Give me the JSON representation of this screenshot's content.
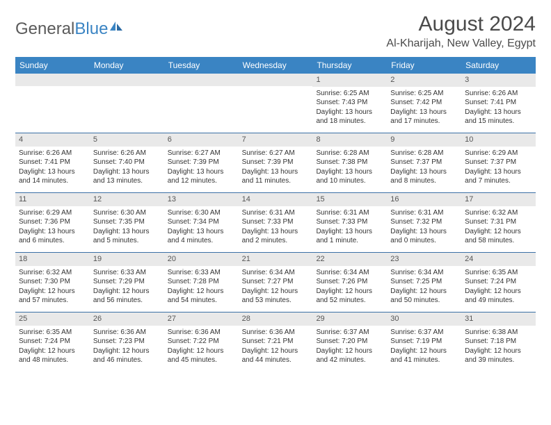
{
  "logo": {
    "text_dark": "General",
    "text_blue": "Blue"
  },
  "title": "August 2024",
  "location": "Al-Kharijah, New Valley, Egypt",
  "colors": {
    "header_bg": "#3a84c3",
    "header_text": "#ffffff",
    "daynum_bg": "#e9e9e9",
    "week_border": "#3a6fa5",
    "text": "#333333"
  },
  "day_names": [
    "Sunday",
    "Monday",
    "Tuesday",
    "Wednesday",
    "Thursday",
    "Friday",
    "Saturday"
  ],
  "weeks": [
    [
      {
        "n": "",
        "sr": "",
        "ss": "",
        "dl": ""
      },
      {
        "n": "",
        "sr": "",
        "ss": "",
        "dl": ""
      },
      {
        "n": "",
        "sr": "",
        "ss": "",
        "dl": ""
      },
      {
        "n": "",
        "sr": "",
        "ss": "",
        "dl": ""
      },
      {
        "n": "1",
        "sr": "Sunrise: 6:25 AM",
        "ss": "Sunset: 7:43 PM",
        "dl": "Daylight: 13 hours and 18 minutes."
      },
      {
        "n": "2",
        "sr": "Sunrise: 6:25 AM",
        "ss": "Sunset: 7:42 PM",
        "dl": "Daylight: 13 hours and 17 minutes."
      },
      {
        "n": "3",
        "sr": "Sunrise: 6:26 AM",
        "ss": "Sunset: 7:41 PM",
        "dl": "Daylight: 13 hours and 15 minutes."
      }
    ],
    [
      {
        "n": "4",
        "sr": "Sunrise: 6:26 AM",
        "ss": "Sunset: 7:41 PM",
        "dl": "Daylight: 13 hours and 14 minutes."
      },
      {
        "n": "5",
        "sr": "Sunrise: 6:26 AM",
        "ss": "Sunset: 7:40 PM",
        "dl": "Daylight: 13 hours and 13 minutes."
      },
      {
        "n": "6",
        "sr": "Sunrise: 6:27 AM",
        "ss": "Sunset: 7:39 PM",
        "dl": "Daylight: 13 hours and 12 minutes."
      },
      {
        "n": "7",
        "sr": "Sunrise: 6:27 AM",
        "ss": "Sunset: 7:39 PM",
        "dl": "Daylight: 13 hours and 11 minutes."
      },
      {
        "n": "8",
        "sr": "Sunrise: 6:28 AM",
        "ss": "Sunset: 7:38 PM",
        "dl": "Daylight: 13 hours and 10 minutes."
      },
      {
        "n": "9",
        "sr": "Sunrise: 6:28 AM",
        "ss": "Sunset: 7:37 PM",
        "dl": "Daylight: 13 hours and 8 minutes."
      },
      {
        "n": "10",
        "sr": "Sunrise: 6:29 AM",
        "ss": "Sunset: 7:37 PM",
        "dl": "Daylight: 13 hours and 7 minutes."
      }
    ],
    [
      {
        "n": "11",
        "sr": "Sunrise: 6:29 AM",
        "ss": "Sunset: 7:36 PM",
        "dl": "Daylight: 13 hours and 6 minutes."
      },
      {
        "n": "12",
        "sr": "Sunrise: 6:30 AM",
        "ss": "Sunset: 7:35 PM",
        "dl": "Daylight: 13 hours and 5 minutes."
      },
      {
        "n": "13",
        "sr": "Sunrise: 6:30 AM",
        "ss": "Sunset: 7:34 PM",
        "dl": "Daylight: 13 hours and 4 minutes."
      },
      {
        "n": "14",
        "sr": "Sunrise: 6:31 AM",
        "ss": "Sunset: 7:33 PM",
        "dl": "Daylight: 13 hours and 2 minutes."
      },
      {
        "n": "15",
        "sr": "Sunrise: 6:31 AM",
        "ss": "Sunset: 7:33 PM",
        "dl": "Daylight: 13 hours and 1 minute."
      },
      {
        "n": "16",
        "sr": "Sunrise: 6:31 AM",
        "ss": "Sunset: 7:32 PM",
        "dl": "Daylight: 13 hours and 0 minutes."
      },
      {
        "n": "17",
        "sr": "Sunrise: 6:32 AM",
        "ss": "Sunset: 7:31 PM",
        "dl": "Daylight: 12 hours and 58 minutes."
      }
    ],
    [
      {
        "n": "18",
        "sr": "Sunrise: 6:32 AM",
        "ss": "Sunset: 7:30 PM",
        "dl": "Daylight: 12 hours and 57 minutes."
      },
      {
        "n": "19",
        "sr": "Sunrise: 6:33 AM",
        "ss": "Sunset: 7:29 PM",
        "dl": "Daylight: 12 hours and 56 minutes."
      },
      {
        "n": "20",
        "sr": "Sunrise: 6:33 AM",
        "ss": "Sunset: 7:28 PM",
        "dl": "Daylight: 12 hours and 54 minutes."
      },
      {
        "n": "21",
        "sr": "Sunrise: 6:34 AM",
        "ss": "Sunset: 7:27 PM",
        "dl": "Daylight: 12 hours and 53 minutes."
      },
      {
        "n": "22",
        "sr": "Sunrise: 6:34 AM",
        "ss": "Sunset: 7:26 PM",
        "dl": "Daylight: 12 hours and 52 minutes."
      },
      {
        "n": "23",
        "sr": "Sunrise: 6:34 AM",
        "ss": "Sunset: 7:25 PM",
        "dl": "Daylight: 12 hours and 50 minutes."
      },
      {
        "n": "24",
        "sr": "Sunrise: 6:35 AM",
        "ss": "Sunset: 7:24 PM",
        "dl": "Daylight: 12 hours and 49 minutes."
      }
    ],
    [
      {
        "n": "25",
        "sr": "Sunrise: 6:35 AM",
        "ss": "Sunset: 7:24 PM",
        "dl": "Daylight: 12 hours and 48 minutes."
      },
      {
        "n": "26",
        "sr": "Sunrise: 6:36 AM",
        "ss": "Sunset: 7:23 PM",
        "dl": "Daylight: 12 hours and 46 minutes."
      },
      {
        "n": "27",
        "sr": "Sunrise: 6:36 AM",
        "ss": "Sunset: 7:22 PM",
        "dl": "Daylight: 12 hours and 45 minutes."
      },
      {
        "n": "28",
        "sr": "Sunrise: 6:36 AM",
        "ss": "Sunset: 7:21 PM",
        "dl": "Daylight: 12 hours and 44 minutes."
      },
      {
        "n": "29",
        "sr": "Sunrise: 6:37 AM",
        "ss": "Sunset: 7:20 PM",
        "dl": "Daylight: 12 hours and 42 minutes."
      },
      {
        "n": "30",
        "sr": "Sunrise: 6:37 AM",
        "ss": "Sunset: 7:19 PM",
        "dl": "Daylight: 12 hours and 41 minutes."
      },
      {
        "n": "31",
        "sr": "Sunrise: 6:38 AM",
        "ss": "Sunset: 7:18 PM",
        "dl": "Daylight: 12 hours and 39 minutes."
      }
    ]
  ]
}
